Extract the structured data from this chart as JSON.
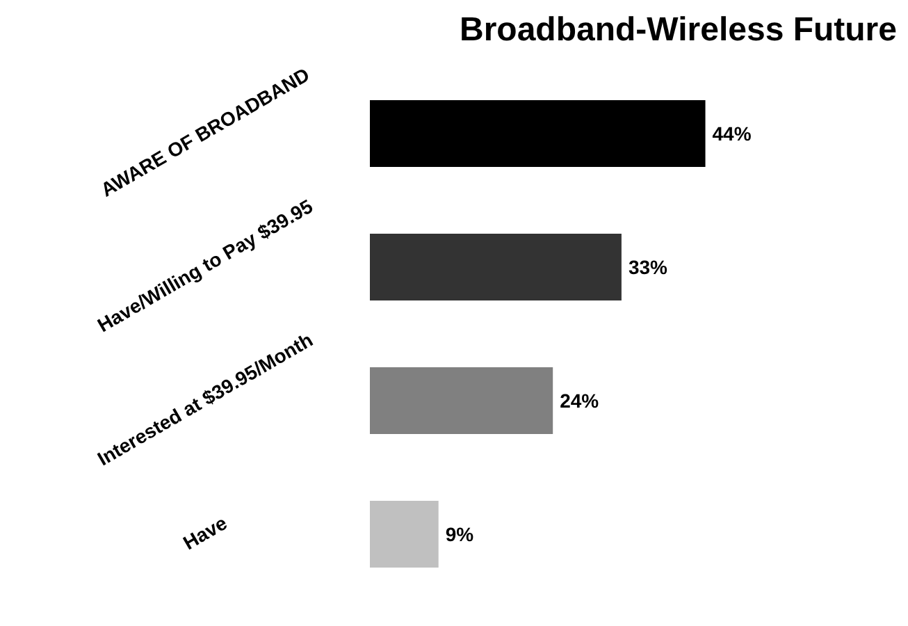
{
  "chart_data": {
    "type": "bar",
    "orientation": "horizontal",
    "title": "Broadband-Wireless Future",
    "categories": [
      "AWARE OF BROADBAND",
      "Have/Willing to Pay $39.95",
      "Interested at $39.95/Month",
      "Have"
    ],
    "values": [
      44,
      33,
      24,
      9
    ],
    "colors": [
      "#000000",
      "#333333",
      "#808080",
      "#c0c0c0"
    ],
    "value_labels": [
      "44%",
      "33%",
      "24%",
      "9%"
    ],
    "grid": false,
    "legend": false
  }
}
